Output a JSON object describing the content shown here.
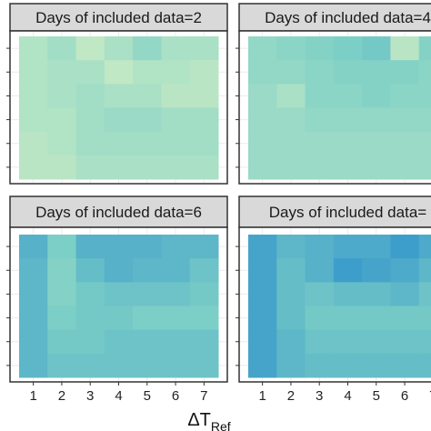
{
  "chart_data": {
    "type": "heatmap",
    "xlabel": "ΔT",
    "xlabel_subscript": "Ref",
    "x_ticks": [
      "1",
      "2",
      "3",
      "4",
      "5",
      "6",
      "7"
    ],
    "grid": true,
    "colors": {
      "low": "#c8ebc5",
      "mid": "#7ccfc6",
      "high": "#2f92cc",
      "strip_bg": "#d9d9d9",
      "panel_border": "#333333"
    },
    "panels": [
      {
        "strip": "Days of included data=2",
        "values": [
          [
            0.15,
            0.25,
            0.05,
            0.2,
            0.35,
            0.2,
            0.2
          ],
          [
            0.15,
            0.2,
            0.2,
            0.05,
            0.15,
            0.15,
            0.1
          ],
          [
            0.15,
            0.2,
            0.25,
            0.2,
            0.2,
            0.1,
            0.1
          ],
          [
            0.15,
            0.15,
            0.25,
            0.3,
            0.3,
            0.25,
            0.25
          ],
          [
            0.1,
            0.15,
            0.25,
            0.25,
            0.25,
            0.25,
            0.25
          ],
          [
            0.1,
            0.1,
            0.2,
            0.2,
            0.2,
            0.2,
            0.2
          ]
        ]
      },
      {
        "strip": "Days of included data=4",
        "values": [
          [
            0.35,
            0.4,
            0.45,
            0.5,
            0.55,
            0.1,
            0.45
          ],
          [
            0.35,
            0.35,
            0.4,
            0.45,
            0.45,
            0.45,
            0.4
          ],
          [
            0.3,
            0.2,
            0.4,
            0.4,
            0.45,
            0.4,
            0.4
          ],
          [
            0.3,
            0.3,
            0.35,
            0.35,
            0.35,
            0.35,
            0.35
          ],
          [
            0.3,
            0.3,
            0.3,
            0.3,
            0.3,
            0.3,
            0.3
          ],
          [
            0.3,
            0.3,
            0.3,
            0.3,
            0.3,
            0.3,
            0.3
          ]
        ]
      },
      {
        "strip": "Days of included data=6",
        "values": [
          [
            0.75,
            0.5,
            0.75,
            0.75,
            0.75,
            0.7,
            0.7
          ],
          [
            0.7,
            0.45,
            0.65,
            0.75,
            0.7,
            0.7,
            0.6
          ],
          [
            0.7,
            0.45,
            0.55,
            0.6,
            0.6,
            0.6,
            0.55
          ],
          [
            0.7,
            0.5,
            0.55,
            0.55,
            0.5,
            0.5,
            0.5
          ],
          [
            0.7,
            0.55,
            0.55,
            0.6,
            0.6,
            0.6,
            0.6
          ],
          [
            0.7,
            0.6,
            0.6,
            0.6,
            0.6,
            0.6,
            0.6
          ]
        ]
      },
      {
        "strip": "Days of included data=",
        "values": [
          [
            0.85,
            0.7,
            0.75,
            0.8,
            0.8,
            0.9,
            0.8
          ],
          [
            0.85,
            0.65,
            0.75,
            0.9,
            0.85,
            0.8,
            0.7
          ],
          [
            0.85,
            0.65,
            0.6,
            0.65,
            0.65,
            0.7,
            0.6
          ],
          [
            0.85,
            0.65,
            0.55,
            0.55,
            0.55,
            0.55,
            0.55
          ],
          [
            0.85,
            0.7,
            0.6,
            0.6,
            0.6,
            0.6,
            0.6
          ],
          [
            0.85,
            0.7,
            0.65,
            0.65,
            0.65,
            0.65,
            0.65
          ]
        ]
      }
    ]
  }
}
